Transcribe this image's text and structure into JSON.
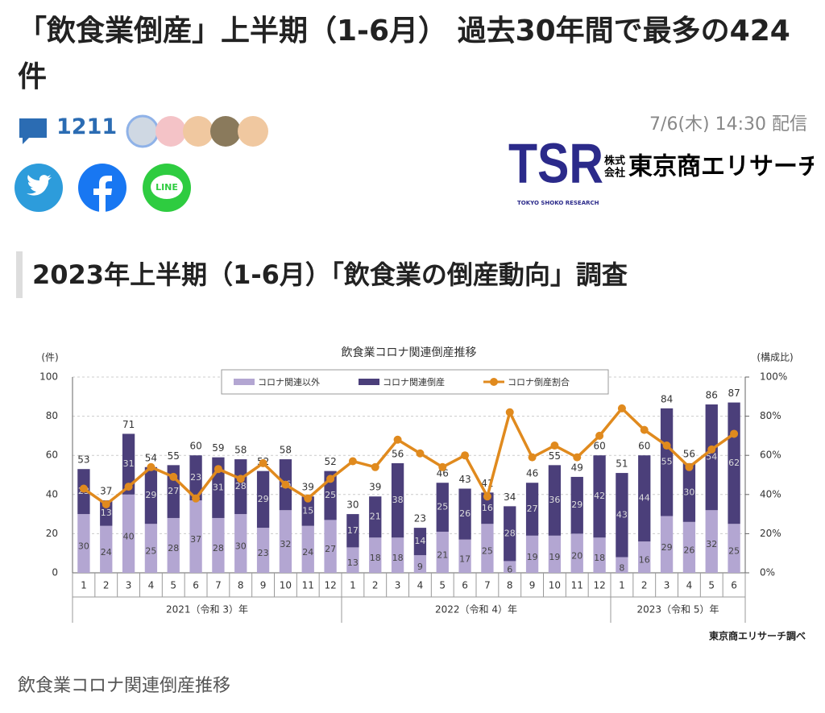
{
  "header": {
    "title": "「飲食業倒産」上半期（1-6月） 過去30年間で最多の424件",
    "comment_count": "1211",
    "date": "7/6(木) 14:30 配信"
  },
  "logo": {
    "mark": "TSR",
    "company_type_top": "株式",
    "company_type_bottom": "会社",
    "company_name": "東京商エリサーチ",
    "english_name": "TOKYO SHOKO RESEARCH"
  },
  "social": {
    "line_label": "LINE"
  },
  "section_heading": "2023年上半期（1-6月）「飲食業の倒産動向」調査",
  "caption": "飲食業コロナ関連倒産推移",
  "chart_data": {
    "type": "bar",
    "stacked": true,
    "title": "飲食業コロナ関連倒産推移",
    "y_label": "(件)",
    "y2_label": "(構成比)",
    "source": "東京商エリサーチ調べ",
    "categories": [
      "1",
      "2",
      "3",
      "4",
      "5",
      "6",
      "7",
      "8",
      "9",
      "10",
      "11",
      "12",
      "1",
      "2",
      "3",
      "4",
      "5",
      "6",
      "7",
      "8",
      "9",
      "10",
      "11",
      "12",
      "1",
      "2",
      "3",
      "4",
      "5",
      "6"
    ],
    "groups": [
      "2021（令和 3）年",
      "2022（令和 4）年",
      "2023（令和 5）年"
    ],
    "series": [
      {
        "name": "コロナ関連以外",
        "color": "#b3a6d2",
        "values": [
          30,
          24,
          40,
          25,
          28,
          37,
          28,
          30,
          23,
          32,
          24,
          27,
          13,
          18,
          18,
          9,
          21,
          17,
          25,
          6,
          19,
          19,
          20,
          18,
          8,
          16,
          29,
          26,
          32,
          25
        ]
      },
      {
        "name": "コロナ関連倒産",
        "color": "#4b3f7a",
        "values": [
          23,
          13,
          31,
          29,
          27,
          23,
          31,
          28,
          29,
          26,
          15,
          25,
          17,
          21,
          38,
          14,
          25,
          26,
          16,
          28,
          27,
          36,
          29,
          42,
          43,
          44,
          55,
          30,
          54,
          62
        ]
      },
      {
        "name": "コロナ倒産割合",
        "color": "#e08a1e",
        "type": "line",
        "axis": "y2",
        "values": [
          43,
          35,
          44,
          54,
          49,
          38,
          53,
          48,
          56,
          45,
          38,
          48,
          57,
          54,
          68,
          61,
          54,
          60,
          39,
          82,
          59,
          65,
          59,
          70,
          84,
          73,
          65,
          54,
          63,
          71
        ]
      }
    ],
    "totals": [
      53,
      37,
      71,
      54,
      55,
      60,
      59,
      58,
      52,
      58,
      39,
      52,
      30,
      39,
      56,
      23,
      46,
      43,
      41,
      34,
      46,
      55,
      49,
      60,
      51,
      60,
      84,
      56,
      86,
      87
    ],
    "ylim": [
      0,
      100
    ],
    "yticks": [
      0,
      20,
      40,
      60,
      80,
      100
    ],
    "y2lim": [
      0,
      100
    ],
    "y2ticks": [
      {
        "value": 0,
        "label": "0%"
      },
      {
        "value": 20,
        "label": "20%"
      },
      {
        "value": 40,
        "label": "40%"
      },
      {
        "value": 60,
        "label": "60%"
      },
      {
        "value": 80,
        "label": "80%"
      },
      {
        "value": 100,
        "label": "100%"
      }
    ],
    "grid": true,
    "legend": "top"
  }
}
